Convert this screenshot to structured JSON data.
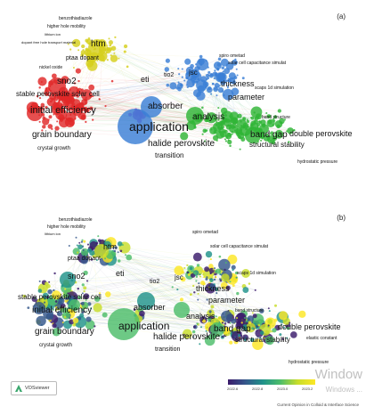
{
  "panels": [
    {
      "letter": "(a)",
      "labels": [
        [
          "benzothiadiazole",
          62,
          20,
          5
        ],
        [
          "higher hole mobility",
          49,
          29,
          5
        ],
        [
          "lithium ion",
          46,
          38,
          4
        ],
        [
          "dopant free hole transport material",
          20,
          47,
          4
        ],
        [
          "ptaa dopant",
          70,
          65,
          7
        ],
        [
          "nickel oxide",
          40,
          75,
          5
        ],
        [
          "htm",
          98,
          50,
          10
        ],
        [
          "sno2",
          60,
          92,
          10
        ],
        [
          "stable perovskite solar cell",
          14,
          106,
          8
        ],
        [
          "initial efficiency",
          30,
          125,
          11
        ],
        [
          "grain boundary",
          32,
          152,
          10
        ],
        [
          "crystal growth",
          38,
          166,
          6
        ],
        [
          "spiro ometad",
          242,
          62,
          5
        ],
        [
          "solar cell capacitance simulat",
          252,
          70,
          5
        ],
        [
          "eti",
          154,
          90,
          9
        ],
        [
          "tio2",
          180,
          84,
          7
        ],
        [
          "jsc",
          208,
          82,
          8
        ],
        [
          "thickness",
          244,
          95,
          9
        ],
        [
          "scaps 1d simulation",
          282,
          98,
          5
        ],
        [
          "parameter",
          252,
          110,
          9
        ],
        [
          "absorber",
          162,
          120,
          10
        ],
        [
          "analysis",
          212,
          132,
          10
        ],
        [
          "application",
          141,
          145,
          14
        ],
        [
          "band structure",
          290,
          131,
          5
        ],
        [
          "band gap",
          277,
          152,
          10
        ],
        [
          "double perovskite",
          321,
          151,
          9
        ],
        [
          "structural stability",
          276,
          163,
          8
        ],
        [
          "halide perovskite",
          162,
          162,
          10
        ],
        [
          "transition",
          170,
          175,
          8
        ],
        [
          "hydrostatic pressure",
          330,
          181,
          5
        ]
      ]
    },
    {
      "letter": "(b)",
      "labels": [
        [
          "benzothiadiazole",
          62,
          30,
          5
        ],
        [
          "higher hole mobility",
          49,
          38,
          5
        ],
        [
          "lithium ion",
          46,
          46,
          4
        ],
        [
          "ptaa dopant",
          72,
          74,
          7
        ],
        [
          "htm",
          112,
          62,
          9
        ],
        [
          "sno2",
          72,
          95,
          9
        ],
        [
          "stable perovskite solar cell",
          16,
          118,
          8
        ],
        [
          "initial efficiency",
          32,
          133,
          10
        ],
        [
          "grain boundary",
          35,
          157,
          10
        ],
        [
          "crystal growth",
          40,
          171,
          6
        ],
        [
          "spiro ometad",
          212,
          44,
          5
        ],
        [
          "solar cell capacitance simulat",
          232,
          60,
          5
        ],
        [
          "eti",
          126,
          92,
          9
        ],
        [
          "tio2",
          164,
          100,
          7
        ],
        [
          "jsc",
          192,
          96,
          8
        ],
        [
          "thickness",
          216,
          109,
          9
        ],
        [
          "scaps 1d simulation",
          262,
          90,
          5
        ],
        [
          "parameter",
          230,
          122,
          9
        ],
        [
          "absorber",
          146,
          130,
          9
        ],
        [
          "analysis",
          205,
          140,
          9
        ],
        [
          "application",
          129,
          152,
          12
        ],
        [
          "band structure",
          260,
          132,
          5
        ],
        [
          "band gap",
          236,
          154,
          10
        ],
        [
          "double perovskite",
          308,
          152,
          9
        ],
        [
          "structural stability",
          260,
          166,
          8
        ],
        [
          "halide perovskite",
          168,
          163,
          10
        ],
        [
          "transition",
          170,
          176,
          7
        ],
        [
          "elastic constant",
          340,
          163,
          5
        ],
        [
          "hydrostatic pressure",
          320,
          190,
          5
        ]
      ]
    }
  ],
  "software_label": "VOSviewer",
  "colorbar": {
    "ticks": [
      "2022.6",
      "2022.8",
      "2023.0",
      "2023.2"
    ],
    "colors": [
      "#3b1b6b",
      "#35578b",
      "#20928a",
      "#4dbd6a",
      "#c8dd2a",
      "#fde725"
    ]
  },
  "credit": "Current Opinion in Colloid & Interface Science",
  "watermark": {
    "line1": "Window",
    "line2": "Windows ..."
  },
  "cluster_colors": {
    "red": "#e02828",
    "yellow": "#d6cf1c",
    "blue": "#3a7fd6",
    "green": "#2fb536",
    "purple": "#a23cc9"
  }
}
